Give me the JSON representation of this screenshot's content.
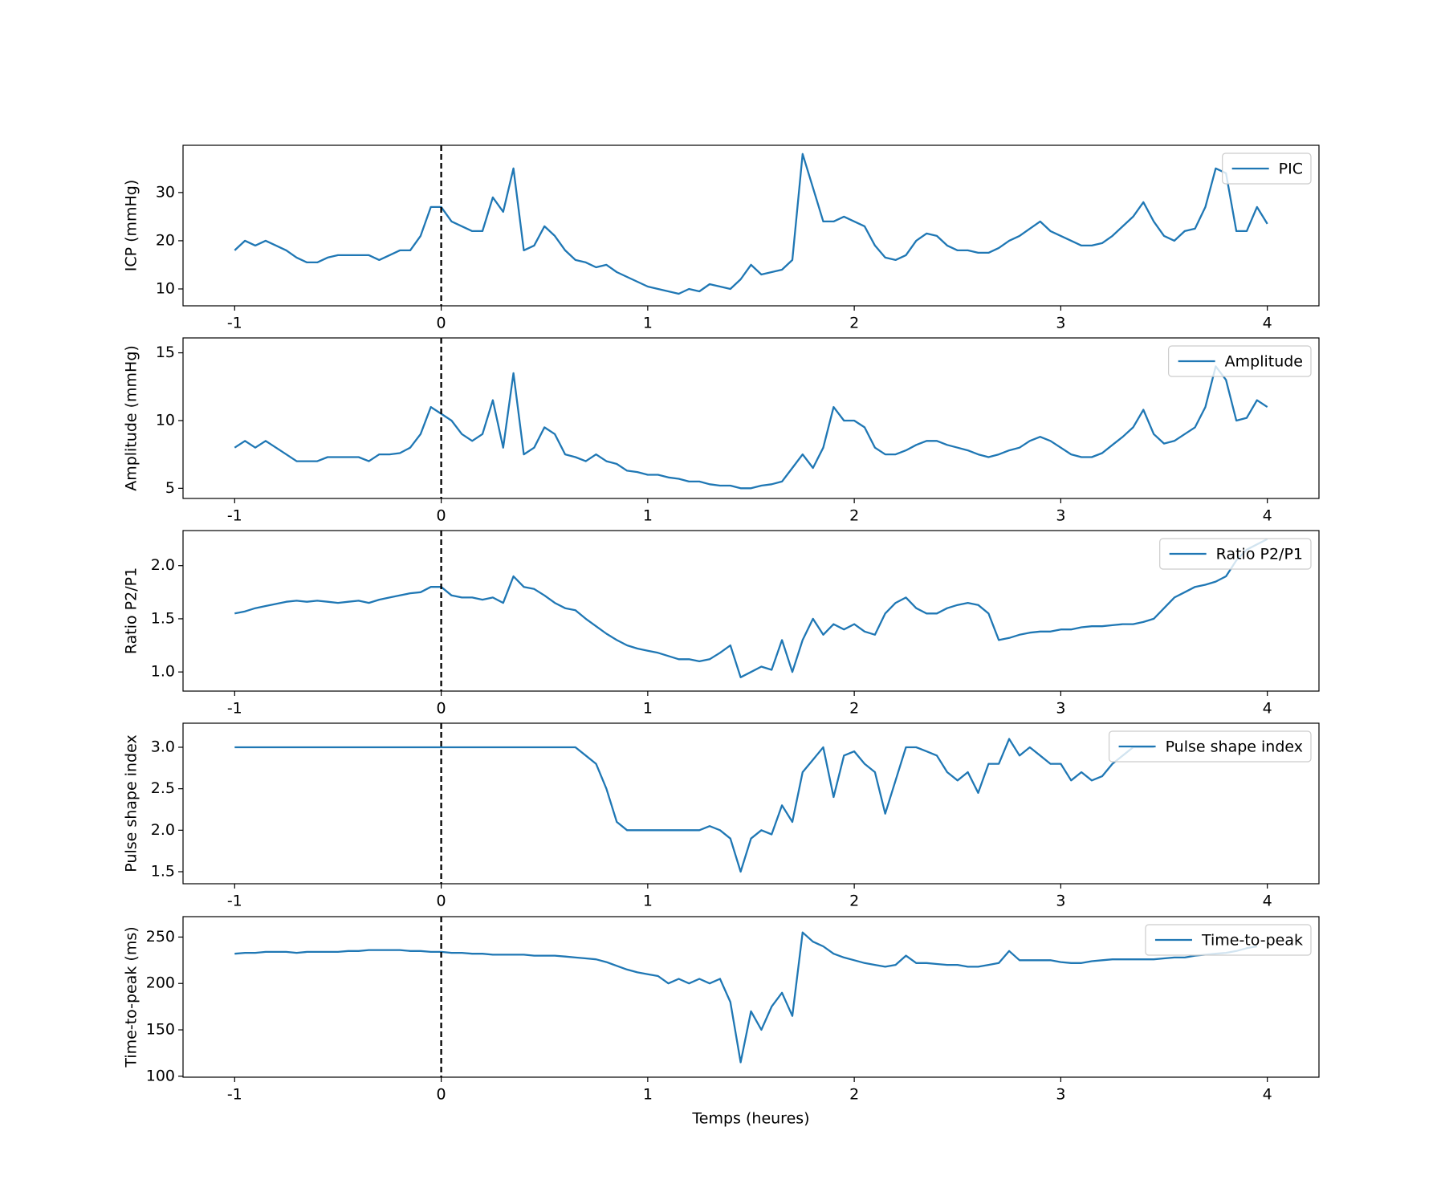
{
  "chart_data": [
    {
      "type": "line",
      "ylabel": "ICP (mmHg)",
      "xlim": [
        -1.25,
        4.25
      ],
      "ylim": [
        6.5,
        39.8
      ],
      "xticks": [
        -1,
        0,
        1,
        2,
        3,
        4
      ],
      "yticks": [
        10,
        20,
        30
      ],
      "vline": 0,
      "legend": "upper right",
      "x": [
        -1,
        -0.95,
        -0.9,
        -0.85,
        -0.8,
        -0.75,
        -0.7,
        -0.65,
        -0.6,
        -0.55,
        -0.5,
        -0.45,
        -0.4,
        -0.35,
        -0.3,
        -0.25,
        -0.2,
        -0.15,
        -0.1,
        -0.05,
        0,
        0.05,
        0.1,
        0.15,
        0.2,
        0.25,
        0.3,
        0.35,
        0.4,
        0.45,
        0.5,
        0.55,
        0.6,
        0.65,
        0.7,
        0.75,
        0.8,
        0.85,
        0.9,
        0.95,
        1,
        1.05,
        1.1,
        1.15,
        1.2,
        1.25,
        1.3,
        1.35,
        1.4,
        1.45,
        1.5,
        1.55,
        1.6,
        1.65,
        1.7,
        1.75,
        1.8,
        1.85,
        1.9,
        1.95,
        2,
        2.05,
        2.1,
        2.15,
        2.2,
        2.25,
        2.3,
        2.35,
        2.4,
        2.45,
        2.5,
        2.55,
        2.6,
        2.65,
        2.7,
        2.75,
        2.8,
        2.85,
        2.9,
        2.95,
        3,
        3.05,
        3.1,
        3.15,
        3.2,
        3.25,
        3.3,
        3.35,
        3.4,
        3.45,
        3.5,
        3.55,
        3.6,
        3.65,
        3.7,
        3.75,
        3.8,
        3.85,
        3.9,
        3.95,
        4
      ],
      "series": [
        {
          "name": "PIC",
          "color": "#1f77b4",
          "values": [
            18,
            20,
            19,
            20,
            19,
            18,
            16.5,
            15.5,
            15.5,
            16.5,
            17,
            17,
            17,
            17,
            16,
            17,
            18,
            18,
            21,
            27,
            27,
            24,
            23,
            22,
            22,
            29,
            26,
            35,
            18,
            19,
            23,
            21,
            18,
            16,
            15.5,
            14.5,
            15,
            13.5,
            12.5,
            11.5,
            10.5,
            10,
            9.5,
            9,
            10,
            9.5,
            11,
            10.5,
            10,
            12,
            15,
            13,
            13.5,
            14,
            16,
            38,
            31,
            24,
            24,
            25,
            24,
            23,
            19,
            16.5,
            16,
            17,
            20,
            21.5,
            21,
            19,
            18,
            18,
            17.5,
            17.5,
            18.5,
            20,
            21,
            22.5,
            24,
            22,
            21,
            20,
            19,
            19,
            19.5,
            21,
            23,
            25,
            28,
            24,
            21,
            20,
            22,
            22.5,
            27,
            35,
            34,
            22,
            22,
            27,
            23.5
          ]
        }
      ]
    },
    {
      "type": "line",
      "ylabel": "Amplitude (mmHg)",
      "xlim": [
        -1.25,
        4.25
      ],
      "ylim": [
        4.25,
        16.1
      ],
      "xticks": [
        -1,
        0,
        1,
        2,
        3,
        4
      ],
      "yticks": [
        5,
        10,
        15
      ],
      "vline": 0,
      "legend": "upper right",
      "x": [
        -1,
        -0.95,
        -0.9,
        -0.85,
        -0.8,
        -0.75,
        -0.7,
        -0.65,
        -0.6,
        -0.55,
        -0.5,
        -0.45,
        -0.4,
        -0.35,
        -0.3,
        -0.25,
        -0.2,
        -0.15,
        -0.1,
        -0.05,
        0,
        0.05,
        0.1,
        0.15,
        0.2,
        0.25,
        0.3,
        0.35,
        0.4,
        0.45,
        0.5,
        0.55,
        0.6,
        0.65,
        0.7,
        0.75,
        0.8,
        0.85,
        0.9,
        0.95,
        1,
        1.05,
        1.1,
        1.15,
        1.2,
        1.25,
        1.3,
        1.35,
        1.4,
        1.45,
        1.5,
        1.55,
        1.6,
        1.65,
        1.7,
        1.75,
        1.8,
        1.85,
        1.9,
        1.95,
        2,
        2.05,
        2.1,
        2.15,
        2.2,
        2.25,
        2.3,
        2.35,
        2.4,
        2.45,
        2.5,
        2.55,
        2.6,
        2.65,
        2.7,
        2.75,
        2.8,
        2.85,
        2.9,
        2.95,
        3,
        3.05,
        3.1,
        3.15,
        3.2,
        3.25,
        3.3,
        3.35,
        3.4,
        3.45,
        3.5,
        3.55,
        3.6,
        3.65,
        3.7,
        3.75,
        3.8,
        3.85,
        3.9,
        3.95,
        4
      ],
      "series": [
        {
          "name": "Amplitude",
          "color": "#1f77b4",
          "values": [
            8,
            8.5,
            8,
            8.5,
            8,
            7.5,
            7,
            7,
            7,
            7.3,
            7.3,
            7.3,
            7.3,
            7,
            7.5,
            7.5,
            7.6,
            8,
            9,
            11,
            10.5,
            10,
            9,
            8.5,
            9,
            11.5,
            8,
            13.5,
            7.5,
            8,
            9.5,
            9,
            7.5,
            7.3,
            7,
            7.5,
            7,
            6.8,
            6.3,
            6.2,
            6,
            6,
            5.8,
            5.7,
            5.5,
            5.5,
            5.3,
            5.2,
            5.2,
            5,
            5,
            5.2,
            5.3,
            5.5,
            6.5,
            7.5,
            6.5,
            8,
            11,
            10,
            10,
            9.5,
            8,
            7.5,
            7.5,
            7.8,
            8.2,
            8.5,
            8.5,
            8.2,
            8,
            7.8,
            7.5,
            7.3,
            7.5,
            7.8,
            8,
            8.5,
            8.8,
            8.5,
            8,
            7.5,
            7.3,
            7.3,
            7.6,
            8.2,
            8.8,
            9.5,
            10.8,
            9,
            8.3,
            8.5,
            9,
            9.5,
            11,
            14,
            13,
            10,
            10.2,
            11.5,
            11
          ]
        }
      ]
    },
    {
      "type": "line",
      "ylabel": "Ratio P2/P1",
      "xlim": [
        -1.25,
        4.25
      ],
      "ylim": [
        0.82,
        2.33
      ],
      "xticks": [
        -1,
        0,
        1,
        2,
        3,
        4
      ],
      "yticks": [
        {
          "value": 1,
          "label": "1.0"
        },
        1.5,
        {
          "value": 2,
          "label": "2.0"
        }
      ],
      "vline": 0,
      "legend": "upper right",
      "x": [
        -1,
        -0.95,
        -0.9,
        -0.85,
        -0.8,
        -0.75,
        -0.7,
        -0.65,
        -0.6,
        -0.55,
        -0.5,
        -0.45,
        -0.4,
        -0.35,
        -0.3,
        -0.25,
        -0.2,
        -0.15,
        -0.1,
        -0.05,
        0,
        0.05,
        0.1,
        0.15,
        0.2,
        0.25,
        0.3,
        0.35,
        0.4,
        0.45,
        0.5,
        0.55,
        0.6,
        0.65,
        0.7,
        0.75,
        0.8,
        0.85,
        0.9,
        0.95,
        1,
        1.05,
        1.1,
        1.15,
        1.2,
        1.25,
        1.3,
        1.35,
        1.4,
        1.45,
        1.5,
        1.55,
        1.6,
        1.65,
        1.7,
        1.75,
        1.8,
        1.85,
        1.9,
        1.95,
        2,
        2.05,
        2.1,
        2.15,
        2.2,
        2.25,
        2.3,
        2.35,
        2.4,
        2.45,
        2.5,
        2.55,
        2.6,
        2.65,
        2.7,
        2.75,
        2.8,
        2.85,
        2.9,
        2.95,
        3,
        3.05,
        3.1,
        3.15,
        3.2,
        3.25,
        3.3,
        3.35,
        3.4,
        3.45,
        3.5,
        3.55,
        3.6,
        3.65,
        3.7,
        3.75,
        3.8,
        3.85,
        3.9,
        3.95,
        4
      ],
      "series": [
        {
          "name": "Ratio P2/P1",
          "color": "#1f77b4",
          "values": [
            1.55,
            1.57,
            1.6,
            1.62,
            1.64,
            1.66,
            1.67,
            1.66,
            1.67,
            1.66,
            1.65,
            1.66,
            1.67,
            1.65,
            1.68,
            1.7,
            1.72,
            1.74,
            1.75,
            1.8,
            1.8,
            1.72,
            1.7,
            1.7,
            1.68,
            1.7,
            1.65,
            1.9,
            1.8,
            1.78,
            1.72,
            1.65,
            1.6,
            1.58,
            1.5,
            1.43,
            1.36,
            1.3,
            1.25,
            1.22,
            1.2,
            1.18,
            1.15,
            1.12,
            1.12,
            1.1,
            1.12,
            1.18,
            1.25,
            0.95,
            1.0,
            1.05,
            1.02,
            1.3,
            1.0,
            1.3,
            1.5,
            1.35,
            1.45,
            1.4,
            1.45,
            1.38,
            1.35,
            1.55,
            1.65,
            1.7,
            1.6,
            1.55,
            1.55,
            1.6,
            1.63,
            1.65,
            1.63,
            1.55,
            1.3,
            1.32,
            1.35,
            1.37,
            1.38,
            1.38,
            1.4,
            1.4,
            1.42,
            1.43,
            1.43,
            1.44,
            1.45,
            1.45,
            1.47,
            1.5,
            1.6,
            1.7,
            1.75,
            1.8,
            1.82,
            1.85,
            1.9,
            2.05,
            2.15,
            2.2,
            2.25
          ]
        }
      ]
    },
    {
      "type": "line",
      "ylabel": "Pulse shape index",
      "xlim": [
        -1.25,
        4.25
      ],
      "ylim": [
        1.355,
        3.29
      ],
      "xticks": [
        -1,
        0,
        1,
        2,
        3,
        4
      ],
      "yticks": [
        1.5,
        {
          "value": 2,
          "label": "2.0"
        },
        2.5,
        {
          "value": 3,
          "label": "3.0"
        }
      ],
      "vline": 0,
      "legend": "upper right",
      "x": [
        -1,
        -0.95,
        -0.9,
        -0.85,
        -0.8,
        -0.75,
        -0.7,
        -0.65,
        -0.6,
        -0.55,
        -0.5,
        -0.45,
        -0.4,
        -0.35,
        -0.3,
        -0.25,
        -0.2,
        -0.15,
        -0.1,
        -0.05,
        0,
        0.05,
        0.1,
        0.15,
        0.2,
        0.25,
        0.3,
        0.35,
        0.4,
        0.45,
        0.5,
        0.55,
        0.6,
        0.65,
        0.7,
        0.75,
        0.8,
        0.85,
        0.9,
        0.95,
        1,
        1.05,
        1.1,
        1.15,
        1.2,
        1.25,
        1.3,
        1.35,
        1.4,
        1.45,
        1.5,
        1.55,
        1.6,
        1.65,
        1.7,
        1.75,
        1.8,
        1.85,
        1.9,
        1.95,
        2,
        2.05,
        2.1,
        2.15,
        2.2,
        2.25,
        2.3,
        2.35,
        2.4,
        2.45,
        2.5,
        2.55,
        2.6,
        2.65,
        2.7,
        2.75,
        2.8,
        2.85,
        2.9,
        2.95,
        3,
        3.05,
        3.1,
        3.15,
        3.2,
        3.25,
        3.3,
        3.35,
        3.4,
        3.45,
        3.5,
        3.55,
        3.6,
        3.65,
        3.7,
        3.75,
        3.8,
        3.85,
        3.9,
        3.95,
        4
      ],
      "series": [
        {
          "name": "Pulse shape index",
          "color": "#1f77b4",
          "values": [
            3,
            3,
            3,
            3,
            3,
            3,
            3,
            3,
            3,
            3,
            3,
            3,
            3,
            3,
            3,
            3,
            3,
            3,
            3,
            3,
            3,
            3,
            3,
            3,
            3,
            3,
            3,
            3,
            3,
            3,
            3,
            3,
            3,
            3,
            2.9,
            2.8,
            2.5,
            2.1,
            2.0,
            2.0,
            2,
            2,
            2,
            2,
            2,
            2,
            2.05,
            2,
            1.9,
            1.5,
            1.9,
            2,
            1.95,
            2.3,
            2.1,
            2.7,
            2.85,
            3.0,
            2.4,
            2.9,
            2.95,
            2.8,
            2.7,
            2.2,
            2.6,
            3,
            3,
            2.95,
            2.9,
            2.7,
            2.6,
            2.7,
            2.45,
            2.8,
            2.8,
            3.1,
            2.9,
            3,
            2.9,
            2.8,
            2.8,
            2.6,
            2.7,
            2.6,
            2.65,
            2.8,
            2.9,
            3,
            3,
            3,
            null,
            null,
            null,
            null,
            null,
            null,
            null,
            null,
            null,
            null,
            null
          ]
        }
      ]
    },
    {
      "type": "line",
      "ylabel": "Time-to-peak (ms)",
      "xlabel": "Temps (heures)",
      "xlim": [
        -1.25,
        4.25
      ],
      "ylim": [
        99,
        272
      ],
      "xticks": [
        -1,
        0,
        1,
        2,
        3,
        4
      ],
      "yticks": [
        100,
        150,
        200,
        250
      ],
      "vline": 0,
      "legend": "upper right",
      "x": [
        -1,
        -0.95,
        -0.9,
        -0.85,
        -0.8,
        -0.75,
        -0.7,
        -0.65,
        -0.6,
        -0.55,
        -0.5,
        -0.45,
        -0.4,
        -0.35,
        -0.3,
        -0.25,
        -0.2,
        -0.15,
        -0.1,
        -0.05,
        0,
        0.05,
        0.1,
        0.15,
        0.2,
        0.25,
        0.3,
        0.35,
        0.4,
        0.45,
        0.5,
        0.55,
        0.6,
        0.65,
        0.7,
        0.75,
        0.8,
        0.85,
        0.9,
        0.95,
        1,
        1.05,
        1.1,
        1.15,
        1.2,
        1.25,
        1.3,
        1.35,
        1.4,
        1.45,
        1.5,
        1.55,
        1.6,
        1.65,
        1.7,
        1.75,
        1.8,
        1.85,
        1.9,
        1.95,
        2,
        2.05,
        2.1,
        2.15,
        2.2,
        2.25,
        2.3,
        2.35,
        2.4,
        2.45,
        2.5,
        2.55,
        2.6,
        2.65,
        2.7,
        2.75,
        2.8,
        2.85,
        2.9,
        2.95,
        3,
        3.05,
        3.1,
        3.15,
        3.2,
        3.25,
        3.3,
        3.35,
        3.4,
        3.45,
        3.5,
        3.55,
        3.6,
        3.65,
        3.7,
        3.75,
        3.8,
        3.85,
        3.9,
        3.95,
        4
      ],
      "series": [
        {
          "name": "Time-to-peak",
          "color": "#1f77b4",
          "values": [
            232,
            233,
            233,
            234,
            234,
            234,
            233,
            234,
            234,
            234,
            234,
            235,
            235,
            236,
            236,
            236,
            236,
            235,
            235,
            234,
            234,
            233,
            233,
            232,
            232,
            231,
            231,
            231,
            231,
            230,
            230,
            230,
            229,
            228,
            227,
            226,
            223,
            219,
            215,
            212,
            210,
            208,
            200,
            205,
            200,
            205,
            200,
            205,
            180,
            115,
            170,
            150,
            175,
            190,
            165,
            255,
            245,
            240,
            232,
            228,
            225,
            222,
            220,
            218,
            220,
            230,
            222,
            222,
            221,
            220,
            220,
            218,
            218,
            220,
            222,
            235,
            225,
            225,
            225,
            225,
            223,
            222,
            222,
            224,
            225,
            226,
            226,
            226,
            226,
            226,
            227,
            228,
            228,
            230,
            231,
            232,
            233,
            235,
            238,
            240,
            null
          ]
        }
      ]
    }
  ]
}
